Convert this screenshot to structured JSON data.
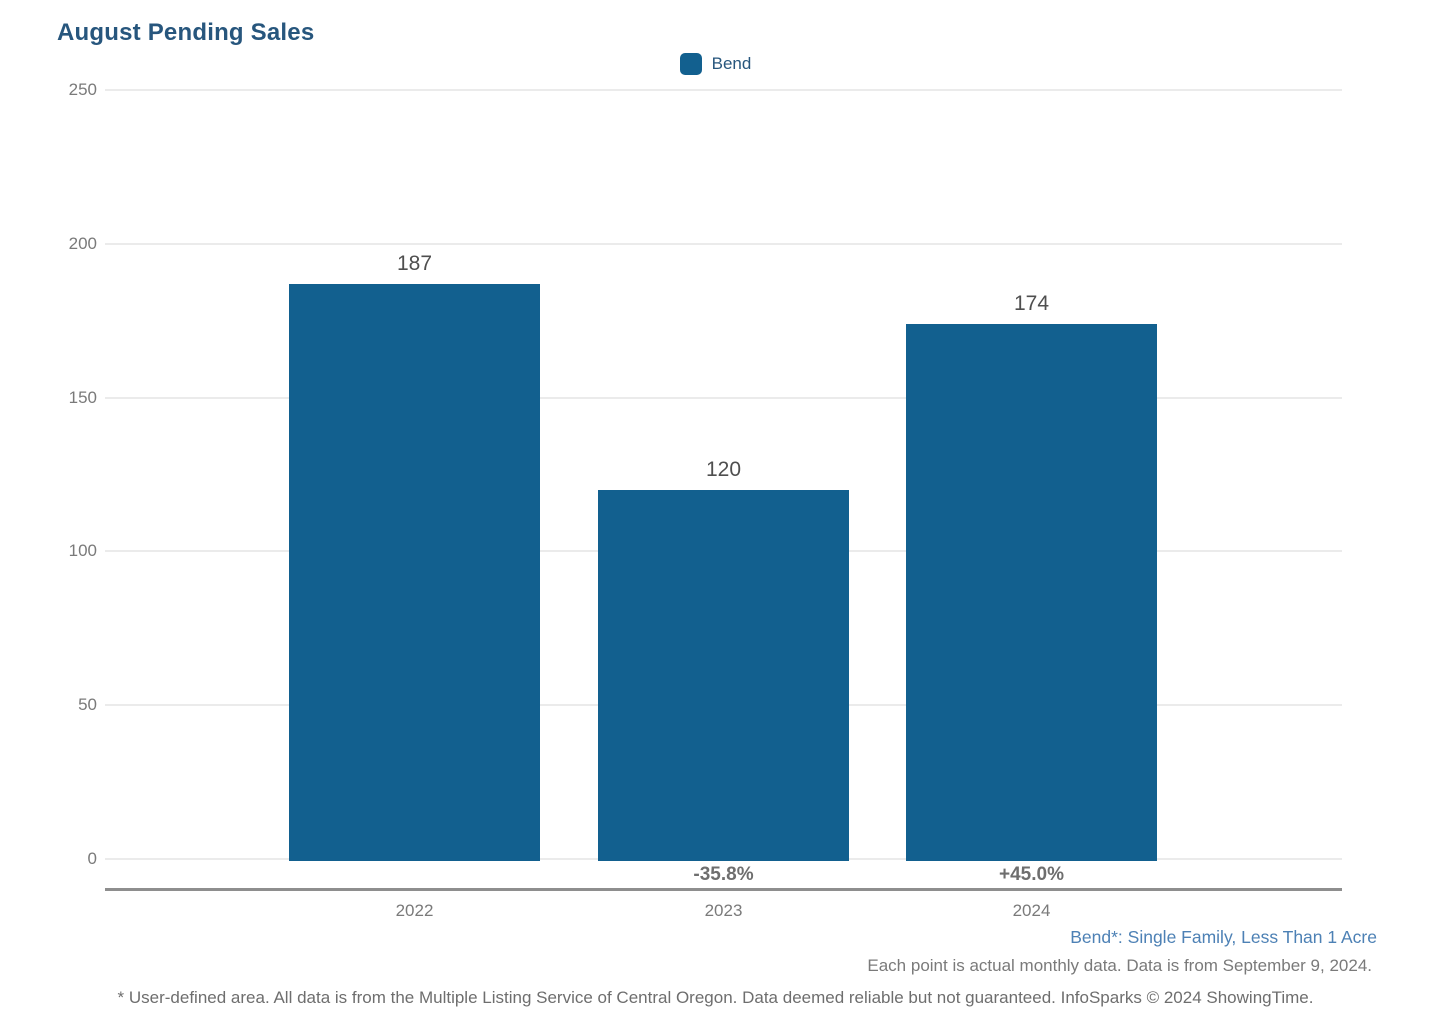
{
  "title": "August Pending Sales",
  "legend": {
    "label": "Bend"
  },
  "chart_data": {
    "type": "bar",
    "title": "August Pending Sales",
    "categories": [
      "2022",
      "2023",
      "2024"
    ],
    "series": [
      {
        "name": "Bend",
        "values": [
          187,
          120,
          174
        ]
      }
    ],
    "value_labels": [
      "187",
      "120",
      "174"
    ],
    "pct_change_labels": [
      null,
      "-35.8%",
      "+45.0%"
    ],
    "xlabel": "",
    "ylabel": "",
    "ylim": [
      0,
      250
    ],
    "yticks": [
      0,
      50,
      100,
      150,
      200,
      250
    ],
    "grid": "horizontal-only",
    "legend_position": "top-center"
  },
  "footer": {
    "series_note": "Bend*: Single Family, Less Than 1 Acre",
    "data_note": "Each point is actual monthly data. Data is from September 9, 2024.",
    "disclaimer": "* User-defined area. All data is from the Multiple Listing Service of Central Oregon. Data deemed reliable but not guaranteed. InfoSparks © 2024 ShowingTime."
  },
  "colors": {
    "bar": "#12608F",
    "title_text": "#27567D",
    "legend_text": "#27567D",
    "series_note_text": "#4D81B5",
    "tick_text": "#7A7A7A",
    "value_label_text": "#4F4F4F",
    "pct_label_text": "#6E6E6E",
    "footer_text": "#6E6E6E",
    "gridline": "#EBEBEB",
    "axis_line": "#8E8E8E"
  }
}
